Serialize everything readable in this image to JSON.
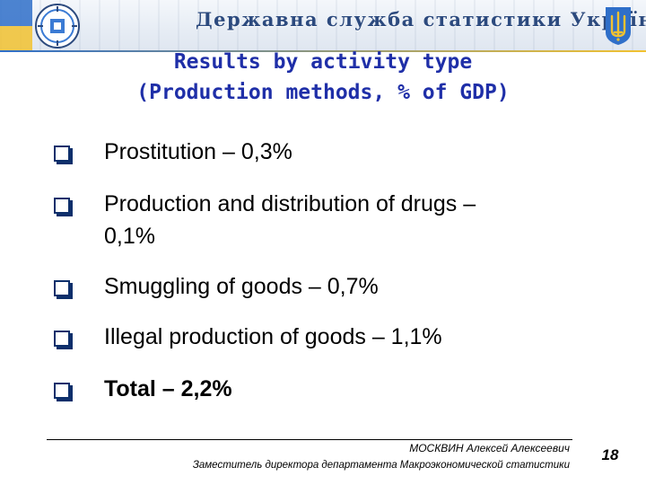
{
  "header": {
    "agency": "Державна служба статистики України",
    "emblem_icon": "statistics-service-emblem-icon",
    "coat_of_arms_icon": "ukraine-trident-icon",
    "colors": {
      "blue": "#2f6fc9",
      "yellow": "#f2c230",
      "agency_text": "#2c4a7e"
    }
  },
  "slide": {
    "title_line1": "Results by activity type",
    "title_line2": "(Production methods, % of GDP)",
    "title_color": "#1f2fa8",
    "bullets": [
      {
        "line1": "Prostitution – 0,3%",
        "line2": ""
      },
      {
        "line1": "Production and distribution of drugs –",
        "line2": "0,1%"
      },
      {
        "line1": "Smuggling of goods – 0,7%",
        "line2": ""
      },
      {
        "line1": "Illegal production of goods – 1,1%",
        "line2": ""
      },
      {
        "line1": "Total – 2,2%",
        "line2": ""
      }
    ]
  },
  "footer": {
    "name": "МОСКВИН Алексей Алексеевич",
    "role": "Заместитель директора департамента Макроэкономической статистики",
    "page": "18"
  }
}
